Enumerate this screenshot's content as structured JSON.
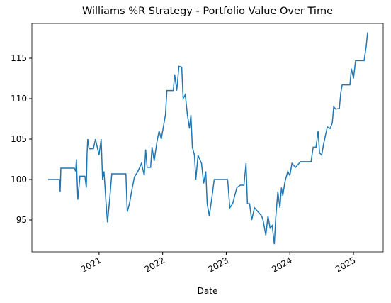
{
  "chart_data": {
    "type": "line",
    "title": "Williams %R Strategy - Portfolio Value Over Time",
    "xlabel": "Date",
    "x": [
      2020.2,
      2020.378,
      2020.389,
      2020.4,
      2020.611,
      2020.633,
      2020.644,
      2020.667,
      2020.7,
      2020.778,
      2020.8,
      2020.811,
      2020.822,
      2020.844,
      2020.911,
      2020.944,
      2021.0,
      2021.033,
      2021.056,
      2021.078,
      2021.111,
      2021.133,
      2021.167,
      2021.2,
      2021.422,
      2021.444,
      2021.478,
      2021.511,
      2021.556,
      2021.611,
      2021.667,
      2021.711,
      2021.733,
      2021.756,
      2021.811,
      2021.833,
      2021.867,
      2021.911,
      2021.944,
      2021.978,
      2022.022,
      2022.044,
      2022.067,
      2022.167,
      2022.189,
      2022.222,
      2022.256,
      2022.3,
      2022.322,
      2022.356,
      2022.389,
      2022.422,
      2022.444,
      2022.467,
      2022.5,
      2022.522,
      2022.556,
      2022.611,
      2022.644,
      2022.678,
      2022.7,
      2022.733,
      2022.778,
      2022.811,
      2023.022,
      2023.056,
      2023.1,
      2023.167,
      2023.222,
      2023.278,
      2023.311,
      2023.333,
      2023.367,
      2023.4,
      2023.444,
      2023.5,
      2023.556,
      2023.578,
      2023.622,
      2023.656,
      2023.689,
      2023.722,
      2023.756,
      2023.778,
      2023.811,
      2023.844,
      2023.867,
      2023.889,
      2023.922,
      2023.967,
      2024.0,
      2024.033,
      2024.089,
      2024.167,
      2024.333,
      2024.367,
      2024.411,
      2024.444,
      2024.467,
      2024.5,
      2024.533,
      2024.589,
      2024.633,
      2024.667,
      2024.689,
      2024.722,
      2024.778,
      2024.8,
      2024.822,
      2024.944,
      2024.967,
      2025.0,
      2025.033,
      2025.167,
      2025.2,
      2025.222
    ],
    "series": [
      {
        "name": "Portfolio Value",
        "color": "#1f77b4",
        "values": [
          100,
          100,
          98.5,
          101.4,
          101.4,
          101,
          102.5,
          97.5,
          100.4,
          100.4,
          99,
          103,
          105,
          103.8,
          103.8,
          105,
          103,
          105,
          100,
          101,
          97,
          94.7,
          97.5,
          100.7,
          100.7,
          96,
          97,
          98.5,
          100.3,
          101,
          102,
          100.5,
          103.7,
          101.5,
          101.5,
          104,
          102.3,
          104.7,
          106,
          105,
          107,
          108,
          111,
          111,
          113,
          111,
          114,
          113.9,
          110,
          110.5,
          108,
          106.3,
          108,
          104,
          103,
          100,
          103,
          102,
          99.5,
          101,
          97,
          95.5,
          98,
          100,
          100,
          96.5,
          97,
          99,
          99.3,
          99.3,
          102,
          97,
          97,
          95,
          96.5,
          96,
          95.5,
          95,
          93.1,
          95.5,
          94,
          94.3,
          92,
          95.3,
          98.5,
          96.5,
          99,
          98,
          99.7,
          101,
          100.5,
          102,
          101.5,
          102.2,
          102.2,
          104,
          104,
          106,
          103.3,
          103,
          104.5,
          106.5,
          106.3,
          107,
          109,
          108.7,
          108.8,
          110.7,
          111.7,
          111.7,
          113.7,
          112.5,
          114.7,
          114.7,
          116.5,
          118.2
        ]
      }
    ],
    "xlim": [
      2019.944,
      2025.467
    ],
    "xticks": [
      2021,
      2022,
      2023,
      2024,
      2025
    ],
    "ylim": [
      91.05,
      119.3
    ],
    "yticks": [
      95,
      100,
      105,
      110,
      115
    ],
    "grid": false
  }
}
